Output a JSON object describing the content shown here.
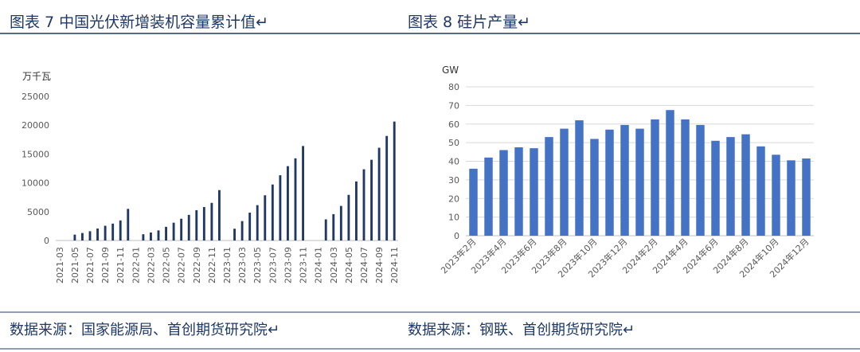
{
  "chart_data": [
    {
      "type": "bar",
      "title": "图表 7 中国光伏新增装机容量累计值↵",
      "source": "数据来源：国家能源局、首创期货研究院↵",
      "y_label": "万千瓦",
      "color": "#1f3864",
      "grid": false,
      "categories": [
        "2021-03",
        null,
        "2021-05",
        null,
        "2021-07",
        null,
        "2021-09",
        null,
        "2021-11",
        null,
        "2022-01",
        null,
        "2022-03",
        null,
        "2022-05",
        null,
        "2022-07",
        null,
        "2022-09",
        null,
        "2022-11",
        null,
        "2023-01",
        null,
        "2023-03",
        null,
        "2023-05",
        null,
        "2023-07",
        null,
        "2023-09",
        null,
        "2023-11",
        null,
        "2024-01",
        null,
        "2024-03",
        null,
        "2024-05",
        null,
        "2024-07",
        null,
        "2024-09",
        null,
        "2024-11"
      ],
      "values": [
        null,
        null,
        1018,
        1301,
        1608,
        2084,
        2556,
        2931,
        3483,
        5488,
        null,
        1086,
        1392,
        1753,
        2371,
        3088,
        3775,
        4447,
        5260,
        5802,
        6527,
        8741,
        null,
        2043,
        3366,
        4831,
        6128,
        7842,
        9713,
        11316,
        12894,
        14256,
        16388,
        null,
        null,
        3667,
        4574,
        6000,
        7915,
        10248,
        12354,
        14000,
        16088,
        18130,
        20630
      ],
      "ylim": [
        0,
        25000
      ],
      "yticks": [
        0,
        5000,
        10000,
        15000,
        20000,
        25000
      ],
      "x_label_rotation": -90
    },
    {
      "type": "bar",
      "title": "图表 8 硅片产量↵",
      "source": "数据来源：钢联、首创期货研究院↵",
      "y_label": "GW",
      "color": "#4472c4",
      "grid": true,
      "categories": [
        "2023年2月",
        null,
        "2023年4月",
        null,
        "2023年6月",
        null,
        "2023年8月",
        null,
        "2023年10月",
        null,
        "2023年12月",
        null,
        "2024年2月",
        null,
        "2024年4月",
        null,
        "2024年6月",
        null,
        "2024年8月",
        null,
        "2024年10月",
        null,
        "2024年12月"
      ],
      "values": [
        36,
        42,
        46,
        47.5,
        47,
        53,
        57.5,
        62,
        52,
        57,
        59.5,
        57.5,
        62.5,
        67.5,
        62.5,
        59.5,
        51,
        53,
        54.5,
        48,
        43.5,
        40.5,
        41.5
      ],
      "ylim": [
        0,
        80
      ],
      "yticks": [
        0,
        10,
        20,
        30,
        40,
        50,
        60,
        70,
        80
      ],
      "x_label_rotation": -45
    }
  ]
}
